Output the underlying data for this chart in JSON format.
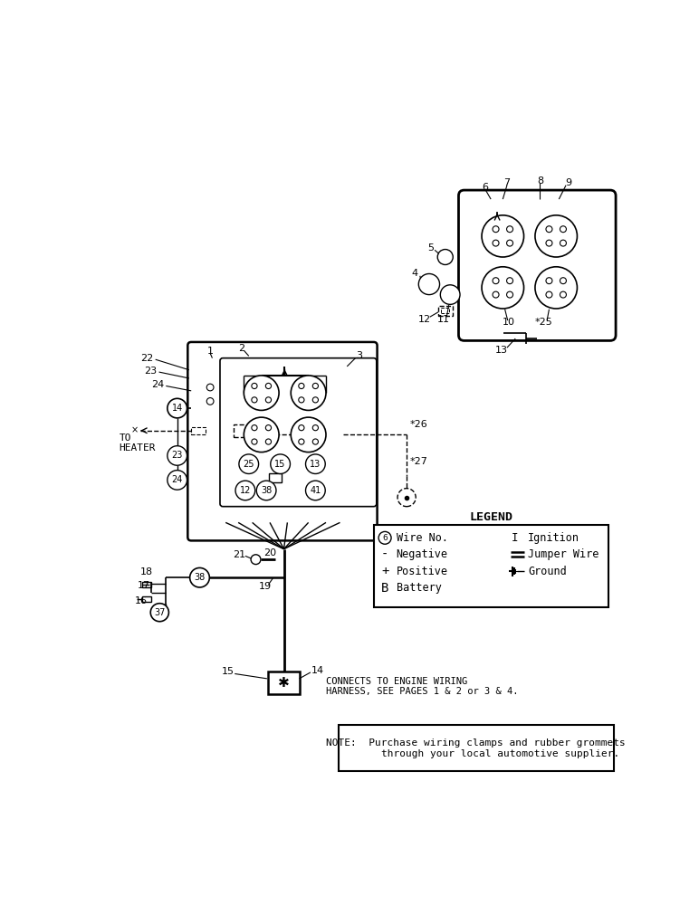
{
  "bg_color": "#ffffff",
  "fig_width": 7.72,
  "fig_height": 10.0,
  "legend_title": "LEGEND",
  "note_text": "NOTE:  Purchase wiring clamps and rubber grommets\n        through your local automotive supplier.",
  "connects_text": "CONNECTS TO ENGINE WIRING\nHARNESS, SEE PAGES 1 & 2 or 3 & 4.",
  "to_heater_text": "TO\nHEATER"
}
